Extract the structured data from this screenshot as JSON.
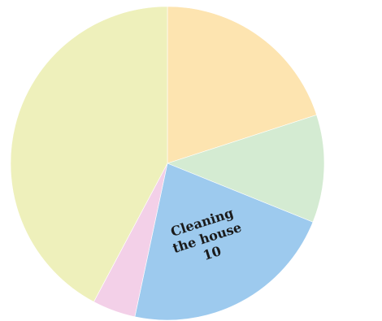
{
  "chart_data": {
    "type": "pie",
    "slices": [
      {
        "label": "",
        "value": 9,
        "color": "#fde4b0"
      },
      {
        "label": "",
        "value": 5,
        "color": "#d4ebd2"
      },
      {
        "label": "Cleaning the house",
        "value": 10,
        "color": "#9dcaee"
      },
      {
        "label": "",
        "value": 2,
        "color": "#f3d0e8"
      },
      {
        "label": "",
        "value": 19,
        "color": "#eef0bb"
      }
    ],
    "data_labels": [
      {
        "lines": [
          "Cleaning",
          "the house",
          "10"
        ],
        "slice_index": 2
      }
    ]
  }
}
